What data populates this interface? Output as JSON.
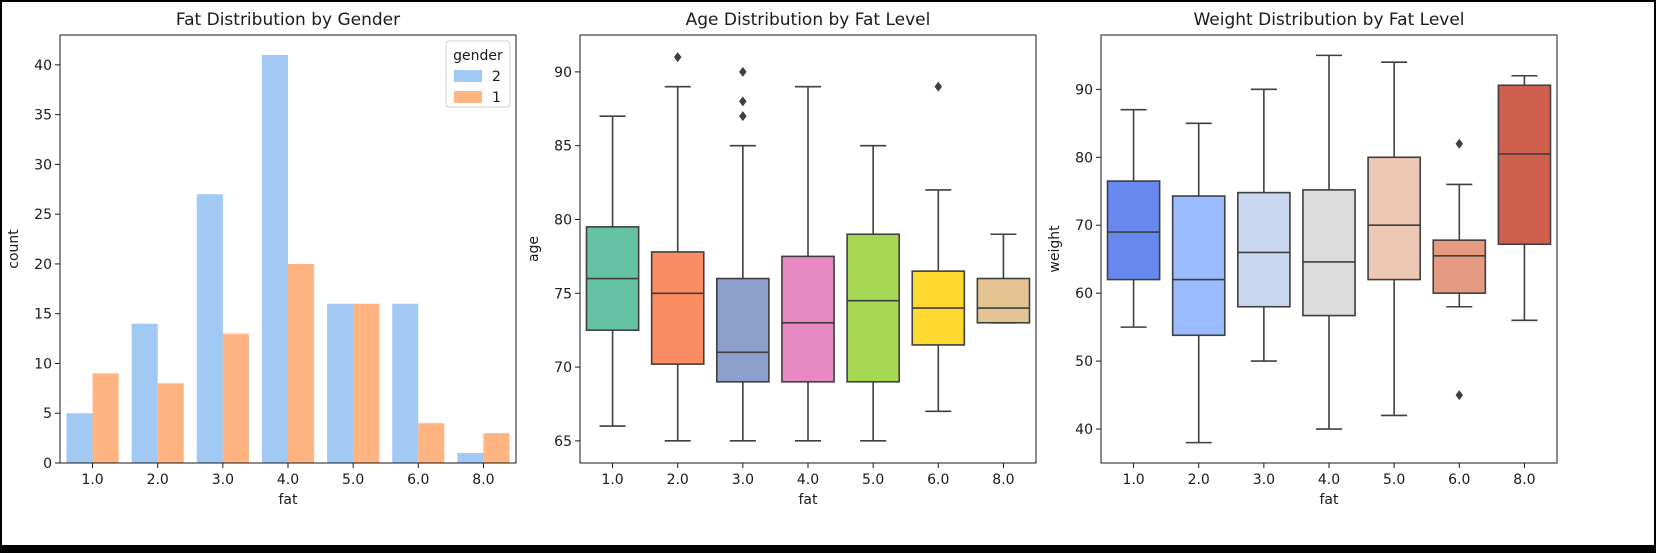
{
  "chart_data": [
    {
      "type": "bar",
      "title": "Fat Distribution by Gender",
      "xlabel": "fat",
      "ylabel": "count",
      "categories": [
        "1.0",
        "2.0",
        "3.0",
        "4.0",
        "5.0",
        "6.0",
        "8.0"
      ],
      "ylim": [
        0,
        43
      ],
      "yticks": [
        0,
        5,
        10,
        15,
        20,
        25,
        30,
        35,
        40
      ],
      "legend": {
        "title": "gender",
        "position": "top-right"
      },
      "series": [
        {
          "name": "2",
          "color": "#a1c9f4",
          "values": [
            5,
            14,
            27,
            41,
            16,
            16,
            1
          ]
        },
        {
          "name": "1",
          "color": "#ffb482",
          "values": [
            9,
            8,
            13,
            20,
            16,
            4,
            3
          ]
        }
      ],
      "grid": false
    },
    {
      "type": "box",
      "title": "Age Distribution by Fat Level",
      "xlabel": "fat",
      "ylabel": "age",
      "categories": [
        "1.0",
        "2.0",
        "3.0",
        "4.0",
        "5.0",
        "6.0",
        "8.0"
      ],
      "ylim": [
        63.5,
        92.5
      ],
      "yticks": [
        65,
        70,
        75,
        80,
        85,
        90
      ],
      "boxes": [
        {
          "category": "1.0",
          "whisker_low": 66,
          "q1": 72.5,
          "median": 76,
          "q3": 79.5,
          "whisker_high": 87,
          "outliers": [],
          "color": "#66c2a5"
        },
        {
          "category": "2.0",
          "whisker_low": 65,
          "q1": 70.2,
          "median": 75,
          "q3": 77.8,
          "whisker_high": 89,
          "outliers": [
            91
          ],
          "color": "#fc8d62"
        },
        {
          "category": "3.0",
          "whisker_low": 65,
          "q1": 69,
          "median": 71,
          "q3": 76,
          "whisker_high": 85,
          "outliers": [
            87,
            88,
            90
          ],
          "color": "#8da0cb"
        },
        {
          "category": "4.0",
          "whisker_low": 65,
          "q1": 69,
          "median": 73,
          "q3": 77.5,
          "whisker_high": 89,
          "outliers": [],
          "color": "#e78ac3"
        },
        {
          "category": "5.0",
          "whisker_low": 65,
          "q1": 69,
          "median": 74.5,
          "q3": 79,
          "whisker_high": 85,
          "outliers": [],
          "color": "#a6d854"
        },
        {
          "category": "6.0",
          "whisker_low": 67,
          "q1": 71.5,
          "median": 74,
          "q3": 76.5,
          "whisker_high": 82,
          "outliers": [
            89
          ],
          "color": "#ffd92f"
        },
        {
          "category": "8.0",
          "whisker_low": 73,
          "q1": 73,
          "median": 74,
          "q3": 76,
          "whisker_high": 79,
          "outliers": [],
          "color": "#e5c494"
        }
      ],
      "grid": false
    },
    {
      "type": "box",
      "title": "Weight Distribution by Fat Level",
      "xlabel": "fat",
      "ylabel": "weight",
      "categories": [
        "1.0",
        "2.0",
        "3.0",
        "4.0",
        "5.0",
        "6.0",
        "8.0"
      ],
      "ylim": [
        35,
        98
      ],
      "yticks": [
        40,
        50,
        60,
        70,
        80,
        90
      ],
      "boxes": [
        {
          "category": "1.0",
          "whisker_low": 55,
          "q1": 62,
          "median": 69,
          "q3": 76.5,
          "whisker_high": 87,
          "outliers": [],
          "color": "#6788ee"
        },
        {
          "category": "2.0",
          "whisker_low": 38,
          "q1": 53.8,
          "median": 62,
          "q3": 74.3,
          "whisker_high": 85,
          "outliers": [],
          "color": "#9abbff"
        },
        {
          "category": "3.0",
          "whisker_low": 50,
          "q1": 58,
          "median": 66,
          "q3": 74.8,
          "whisker_high": 90,
          "outliers": [],
          "color": "#c9d7f0"
        },
        {
          "category": "4.0",
          "whisker_low": 40,
          "q1": 56.7,
          "median": 64.6,
          "q3": 75.2,
          "whisker_high": 95,
          "outliers": [],
          "color": "#dddcdc"
        },
        {
          "category": "5.0",
          "whisker_low": 42,
          "q1": 62,
          "median": 70,
          "q3": 80,
          "whisker_high": 94,
          "outliers": [],
          "color": "#edc8b4"
        },
        {
          "category": "6.0",
          "whisker_low": 58,
          "q1": 60,
          "median": 65.5,
          "q3": 67.8,
          "whisker_high": 76,
          "outliers": [
            82,
            45
          ],
          "color": "#e69a82"
        },
        {
          "category": "8.0",
          "whisker_low": 56,
          "q1": 67.2,
          "median": 80.5,
          "q3": 90.6,
          "whisker_high": 92,
          "outliers": [],
          "color": "#d0604e"
        }
      ],
      "grid": false
    }
  ]
}
